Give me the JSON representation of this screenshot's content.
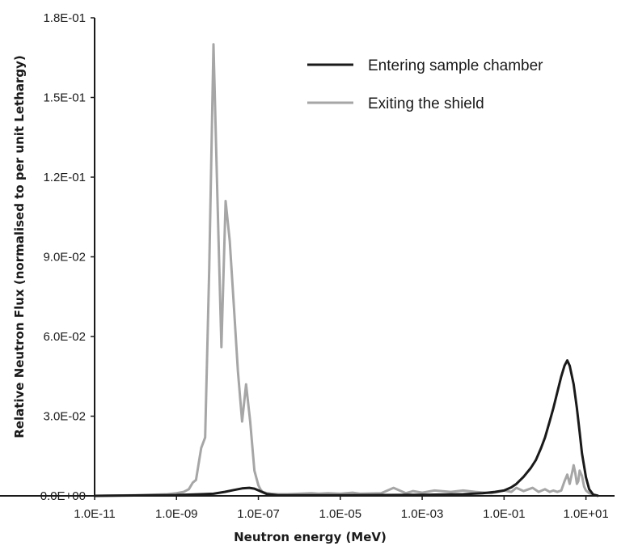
{
  "chart_data": {
    "type": "line",
    "xlabel": "Neutron energy (MeV)",
    "ylabel": "Relative Neutron Flux (normalised to per unit Lethargy)",
    "x_scale": "log",
    "xlim": [
      1e-11,
      50
    ],
    "ylim": [
      0,
      0.18
    ],
    "x_ticks": [
      {
        "value": 1e-11,
        "label": "1.0E-11"
      },
      {
        "value": 1e-09,
        "label": "1.0E-09"
      },
      {
        "value": 1e-07,
        "label": "1.0E-07"
      },
      {
        "value": 1e-05,
        "label": "1.0E-05"
      },
      {
        "value": 0.001,
        "label": "1.0E-03"
      },
      {
        "value": 0.1,
        "label": "1.0E-01"
      },
      {
        "value": 10,
        "label": "1.0E+01"
      }
    ],
    "y_ticks": [
      {
        "value": 0,
        "label": "0.0E+00"
      },
      {
        "value": 0.03,
        "label": "3.0E-02"
      },
      {
        "value": 0.06,
        "label": "6.0E-02"
      },
      {
        "value": 0.09,
        "label": "9.0E-02"
      },
      {
        "value": 0.12,
        "label": "1.2E-01"
      },
      {
        "value": 0.15,
        "label": "1.5E-01"
      },
      {
        "value": 0.18,
        "label": "1.8E-01"
      }
    ],
    "grid": false,
    "legend_position": "top-right",
    "series": [
      {
        "name": "Entering sample chamber",
        "color": "#1a1a1a",
        "x": [
          1e-11,
          1e-09,
          8e-09,
          1.5e-08,
          2.5e-08,
          4e-08,
          6e-08,
          8e-08,
          1.1e-07,
          1.6e-07,
          3e-07,
          1e-06,
          1e-05,
          0.0001,
          0.001,
          0.01,
          0.03,
          0.06,
          0.1,
          0.15,
          0.2,
          0.3,
          0.45,
          0.6,
          0.8,
          1.0,
          1.3,
          1.6,
          2.0,
          2.5,
          3.0,
          3.5,
          4.0,
          5.0,
          6.0,
          7.0,
          8.0,
          10.0,
          12.0,
          15.0,
          20.0
        ],
        "y": [
          0.0,
          0.0003,
          0.0008,
          0.0015,
          0.0022,
          0.0028,
          0.003,
          0.0027,
          0.0018,
          0.0007,
          0.0002,
          0.0002,
          0.0002,
          0.0003,
          0.0004,
          0.0006,
          0.001,
          0.0015,
          0.002,
          0.0032,
          0.0045,
          0.0072,
          0.0105,
          0.0135,
          0.018,
          0.022,
          0.028,
          0.033,
          0.039,
          0.045,
          0.049,
          0.051,
          0.049,
          0.042,
          0.033,
          0.024,
          0.016,
          0.007,
          0.0025,
          0.0005,
          0.0
        ]
      },
      {
        "name": "Exiting the shield",
        "color": "#a6a6a6",
        "x": [
          1e-11,
          1e-10,
          6e-10,
          1e-09,
          1.5e-09,
          2e-09,
          2.5e-09,
          3e-09,
          4e-09,
          5e-09,
          6.3e-09,
          8e-09,
          1e-08,
          1.25e-08,
          1.58e-08,
          2e-08,
          2.5e-08,
          3.16e-08,
          4e-08,
          5e-08,
          6.3e-08,
          8e-08,
          1e-07,
          1.12e-07,
          1.26e-07,
          1.6e-07,
          2e-07,
          3e-07,
          5e-07,
          1e-06,
          2e-06,
          3e-06,
          5e-06,
          1e-05,
          2e-05,
          3e-05,
          0.0001,
          0.0002,
          0.0004,
          0.0006,
          0.001,
          0.002,
          0.005,
          0.01,
          0.02,
          0.05,
          0.1,
          0.15,
          0.2,
          0.3,
          0.5,
          0.7,
          1.0,
          1.3,
          1.6,
          2.0,
          2.5,
          3.0,
          3.5,
          4.0,
          4.5,
          5.0,
          5.5,
          6.0,
          6.5,
          7.0,
          8.0,
          9.0,
          10.0,
          12.0,
          15.0,
          20.0
        ],
        "y": [
          0.0,
          0.0002,
          0.0006,
          0.001,
          0.0015,
          0.0025,
          0.005,
          0.006,
          0.018,
          0.022,
          0.085,
          0.17,
          0.112,
          0.056,
          0.111,
          0.096,
          0.072,
          0.047,
          0.028,
          0.042,
          0.028,
          0.0095,
          0.004,
          0.0025,
          0.0015,
          0.001,
          0.0008,
          0.0006,
          0.0006,
          0.0008,
          0.001,
          0.0008,
          0.001,
          0.0008,
          0.0012,
          0.0008,
          0.001,
          0.003,
          0.001,
          0.0018,
          0.0012,
          0.002,
          0.0015,
          0.002,
          0.0015,
          0.001,
          0.002,
          0.0015,
          0.003,
          0.0018,
          0.003,
          0.0015,
          0.0025,
          0.0015,
          0.002,
          0.0015,
          0.002,
          0.0055,
          0.008,
          0.0045,
          0.008,
          0.0115,
          0.0085,
          0.0045,
          0.0055,
          0.0095,
          0.0075,
          0.0035,
          0.002,
          0.001,
          0.0005,
          0.0
        ]
      }
    ]
  }
}
